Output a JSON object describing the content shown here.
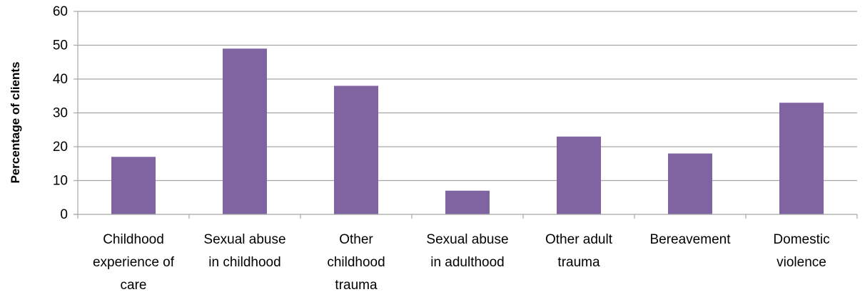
{
  "chart_data": {
    "type": "bar",
    "categories": [
      [
        "Childhood",
        "experience of",
        "care"
      ],
      [
        "Sexual abuse",
        "in childhood"
      ],
      [
        "Other",
        "childhood",
        "trauma"
      ],
      [
        "Sexual abuse",
        "in adulthood"
      ],
      [
        "Other adult",
        "trauma"
      ],
      [
        "Bereavement"
      ],
      [
        "Domestic",
        "violence"
      ]
    ],
    "values": [
      17,
      49,
      38,
      7,
      23,
      18,
      33
    ],
    "title": "",
    "xlabel": "",
    "ylabel": "Percentage of clients",
    "ylim": [
      0,
      60
    ],
    "yticks": [
      0,
      10,
      20,
      30,
      40,
      50,
      60
    ],
    "grid": true,
    "legend": "none",
    "colors": {
      "bar": "#8064a2",
      "grid": "#a6a6a6",
      "axis": "#a6a6a6"
    }
  }
}
